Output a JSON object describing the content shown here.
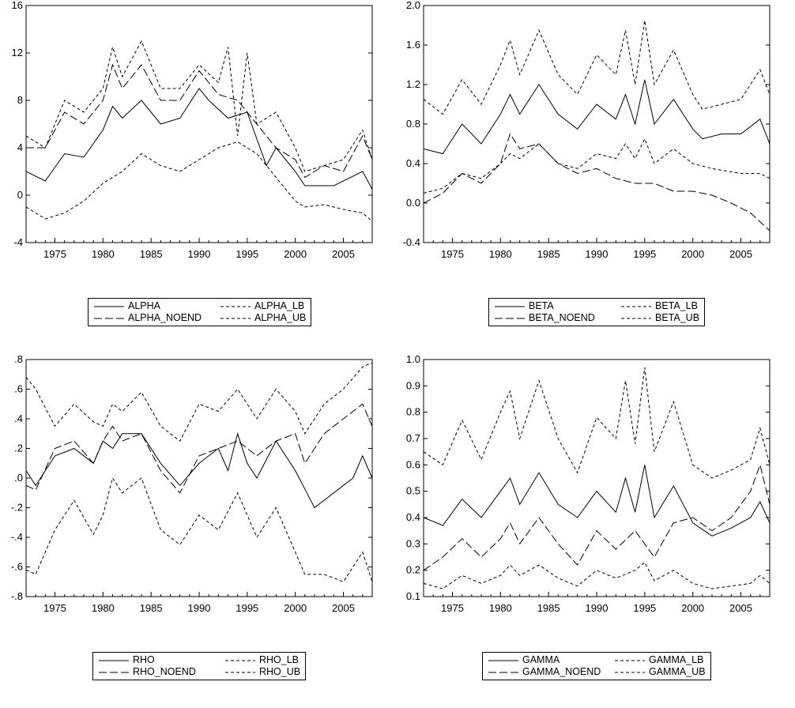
{
  "chart_data": [
    {
      "type": "line",
      "x_ticks": [
        "1975",
        "1980",
        "1985",
        "1990",
        "1995",
        "2000",
        "2005"
      ],
      "y_ticks": [
        "-4",
        "0",
        "4",
        "8",
        "12",
        "16"
      ],
      "xlim": [
        1972,
        2008
      ],
      "ylim": [
        -4,
        16
      ],
      "legend": {
        "position": "bottom-center",
        "entries": [
          "ALPHA",
          "ALPHA_LB",
          "ALPHA_NOEND",
          "ALPHA_UB"
        ]
      },
      "series": [
        {
          "name": "ALPHA",
          "style": "solid",
          "x": [
            1972,
            1974,
            1976,
            1978,
            1980,
            1981,
            1982,
            1984,
            1986,
            1988,
            1990,
            1991,
            1993,
            1995,
            1997,
            1998,
            2000,
            2001,
            2004,
            2007,
            2008
          ],
          "y": [
            2,
            1.2,
            3.5,
            3.2,
            5.5,
            7.5,
            6.5,
            8,
            6,
            6.5,
            9,
            8,
            6.5,
            7,
            2.5,
            4,
            2,
            0.8,
            0.8,
            2,
            0.5
          ]
        },
        {
          "name": "ALPHA_LB",
          "style": "short-dash",
          "x": [
            1972,
            1974,
            1976,
            1978,
            1980,
            1982,
            1984,
            1986,
            1988,
            1990,
            1992,
            1994,
            1996,
            1998,
            2000,
            2001,
            2003,
            2005,
            2007,
            2008
          ],
          "y": [
            -1,
            -2,
            -1.5,
            -0.5,
            1,
            2,
            3.5,
            2.5,
            2,
            3,
            4,
            4.5,
            3.5,
            1.5,
            -0.5,
            -1,
            -0.8,
            -1.2,
            -1.5,
            -2.2
          ]
        },
        {
          "name": "ALPHA_NOEND",
          "style": "long-dash",
          "x": [
            1972,
            1974,
            1976,
            1978,
            1980,
            1981,
            1982,
            1984,
            1986,
            1988,
            1990,
            1992,
            1994,
            1996,
            1998,
            2000,
            2001,
            2003,
            2005,
            2007,
            2008
          ],
          "y": [
            4,
            4,
            7,
            6,
            8,
            11,
            9,
            11,
            8,
            8,
            10.5,
            8.5,
            8,
            6,
            4,
            3,
            1.5,
            2.5,
            2,
            5,
            3
          ]
        },
        {
          "name": "ALPHA_UB",
          "style": "short-dash",
          "x": [
            1972,
            1974,
            1976,
            1978,
            1980,
            1981,
            1982,
            1984,
            1986,
            1988,
            1990,
            1992,
            1993,
            1994,
            1995,
            1996,
            1998,
            2000,
            2001,
            2003,
            2005,
            2007,
            2008
          ],
          "y": [
            5,
            4,
            8,
            7,
            9,
            12.5,
            10,
            13,
            9,
            9,
            11,
            9.5,
            12.5,
            5,
            12,
            6,
            7,
            4,
            2,
            2.5,
            3,
            5.5,
            3
          ]
        }
      ]
    },
    {
      "type": "line",
      "x_ticks": [
        "1975",
        "1980",
        "1985",
        "1990",
        "1995",
        "2000",
        "2005"
      ],
      "y_ticks": [
        "-0.4",
        "0.0",
        "0.4",
        "0.8",
        "1.2",
        "1.6",
        "2.0"
      ],
      "xlim": [
        1972,
        2008
      ],
      "ylim": [
        -0.4,
        2.0
      ],
      "legend": {
        "position": "bottom-center",
        "entries": [
          "BETA",
          "BETA_LB",
          "BETA_NOEND",
          "BETA_UB"
        ]
      },
      "series": [
        {
          "name": "BETA",
          "style": "solid",
          "x": [
            1972,
            1974,
            1976,
            1978,
            1980,
            1981,
            1982,
            1984,
            1986,
            1988,
            1990,
            1992,
            1993,
            1994,
            1995,
            1996,
            1998,
            2000,
            2001,
            2003,
            2005,
            2007,
            2008
          ],
          "y": [
            0.55,
            0.5,
            0.8,
            0.6,
            0.9,
            1.1,
            0.9,
            1.2,
            0.9,
            0.75,
            1.0,
            0.85,
            1.1,
            0.8,
            1.25,
            0.8,
            1.05,
            0.75,
            0.65,
            0.7,
            0.7,
            0.85,
            0.6
          ]
        },
        {
          "name": "BETA_LB",
          "style": "short-dash",
          "x": [
            1972,
            1974,
            1976,
            1978,
            1980,
            1981,
            1982,
            1984,
            1986,
            1988,
            1990,
            1992,
            1993,
            1994,
            1995,
            1996,
            1998,
            2000,
            2002,
            2005,
            2007,
            2008
          ],
          "y": [
            0.1,
            0.15,
            0.3,
            0.25,
            0.4,
            0.5,
            0.45,
            0.6,
            0.4,
            0.35,
            0.5,
            0.45,
            0.6,
            0.45,
            0.65,
            0.4,
            0.55,
            0.4,
            0.35,
            0.3,
            0.3,
            0.25
          ]
        },
        {
          "name": "BETA_NOEND",
          "style": "long-dash",
          "x": [
            1972,
            1974,
            1976,
            1978,
            1980,
            1981,
            1982,
            1984,
            1986,
            1988,
            1990,
            1992,
            1994,
            1996,
            1998,
            2000,
            2002,
            2004,
            2006,
            2008
          ],
          "y": [
            0.0,
            0.1,
            0.3,
            0.2,
            0.4,
            0.7,
            0.55,
            0.6,
            0.4,
            0.3,
            0.35,
            0.25,
            0.2,
            0.2,
            0.12,
            0.12,
            0.08,
            0.0,
            -0.1,
            -0.28
          ]
        },
        {
          "name": "BETA_UB",
          "style": "short-dash",
          "x": [
            1972,
            1974,
            1976,
            1978,
            1980,
            1981,
            1982,
            1984,
            1986,
            1988,
            1990,
            1992,
            1993,
            1994,
            1995,
            1996,
            1998,
            2000,
            2001,
            2003,
            2005,
            2007,
            2008
          ],
          "y": [
            1.05,
            0.9,
            1.25,
            1.0,
            1.4,
            1.65,
            1.3,
            1.75,
            1.3,
            1.1,
            1.5,
            1.3,
            1.75,
            1.2,
            1.85,
            1.2,
            1.55,
            1.1,
            0.95,
            1.0,
            1.05,
            1.35,
            1.1
          ]
        }
      ]
    },
    {
      "type": "line",
      "x_ticks": [
        "1975",
        "1980",
        "1985",
        "1990",
        "1995",
        "2000",
        "2005"
      ],
      "y_ticks": [
        "-.8",
        "-.6",
        "-.4",
        "-.2",
        ".0",
        ".2",
        ".4",
        ".6",
        ".8"
      ],
      "xlim": [
        1972,
        2008
      ],
      "ylim": [
        -0.8,
        0.8
      ],
      "legend": {
        "position": "bottom-center",
        "entries": [
          "RHO",
          "RHO_LB",
          "RHO_NOEND",
          "RHO_UB"
        ]
      },
      "series": [
        {
          "name": "RHO",
          "style": "solid",
          "x": [
            1972,
            1973,
            1975,
            1977,
            1979,
            1980,
            1981,
            1982,
            1984,
            1986,
            1988,
            1990,
            1992,
            1993,
            1994,
            1995,
            1996,
            1998,
            2000,
            2002,
            2004,
            2006,
            2007,
            2008
          ],
          "y": [
            0.05,
            -0.05,
            0.15,
            0.2,
            0.1,
            0.25,
            0.2,
            0.3,
            0.3,
            0.1,
            -0.05,
            0.1,
            0.2,
            0.05,
            0.3,
            0.1,
            0.0,
            0.25,
            0.05,
            -0.2,
            -0.1,
            0.0,
            0.15,
            0.0
          ]
        },
        {
          "name": "RHO_LB",
          "style": "short-dash",
          "x": [
            1972,
            1973,
            1975,
            1977,
            1979,
            1980,
            1981,
            1982,
            1984,
            1986,
            1988,
            1990,
            1992,
            1994,
            1996,
            1998,
            2000,
            2001,
            2003,
            2005,
            2007,
            2008
          ],
          "y": [
            -0.62,
            -0.65,
            -0.35,
            -0.15,
            -0.38,
            -0.25,
            0.0,
            -0.1,
            0.0,
            -0.35,
            -0.45,
            -0.25,
            -0.35,
            -0.1,
            -0.4,
            -0.2,
            -0.5,
            -0.65,
            -0.65,
            -0.7,
            -0.5,
            -0.7
          ]
        },
        {
          "name": "RHO_NOEND",
          "style": "long-dash",
          "x": [
            1972,
            1973,
            1975,
            1977,
            1979,
            1980,
            1981,
            1982,
            1984,
            1986,
            1988,
            1990,
            1992,
            1994,
            1996,
            1998,
            2000,
            2001,
            2003,
            2005,
            2007,
            2008
          ],
          "y": [
            -0.05,
            -0.08,
            0.2,
            0.25,
            0.1,
            0.25,
            0.35,
            0.25,
            0.3,
            0.05,
            -0.1,
            0.15,
            0.2,
            0.25,
            0.15,
            0.25,
            0.3,
            0.1,
            0.3,
            0.4,
            0.5,
            0.35
          ]
        },
        {
          "name": "RHO_UB",
          "style": "short-dash",
          "x": [
            1972,
            1973,
            1975,
            1977,
            1979,
            1980,
            1981,
            1982,
            1984,
            1986,
            1988,
            1990,
            1992,
            1994,
            1996,
            1998,
            2000,
            2001,
            2003,
            2005,
            2007,
            2008
          ],
          "y": [
            0.68,
            0.6,
            0.35,
            0.5,
            0.38,
            0.35,
            0.5,
            0.45,
            0.58,
            0.35,
            0.25,
            0.5,
            0.45,
            0.6,
            0.4,
            0.6,
            0.45,
            0.3,
            0.5,
            0.6,
            0.75,
            0.78
          ]
        }
      ]
    },
    {
      "type": "line",
      "x_ticks": [
        "1975",
        "1980",
        "1985",
        "1990",
        "1995",
        "2000",
        "2005"
      ],
      "y_ticks": [
        "0.1",
        "0.2",
        "0.3",
        "0.4",
        "0.5",
        "0.6",
        "0.7",
        "0.8",
        "0.9",
        "1.0"
      ],
      "xlim": [
        1972,
        2008
      ],
      "ylim": [
        0.1,
        1.0
      ],
      "legend": {
        "position": "bottom-center",
        "entries": [
          "GAMMA",
          "GAMMA_LB",
          "GAMMA_NOEND",
          "GAMMA_UB"
        ]
      },
      "series": [
        {
          "name": "GAMMA",
          "style": "solid",
          "x": [
            1972,
            1974,
            1976,
            1978,
            1980,
            1981,
            1982,
            1984,
            1986,
            1988,
            1990,
            1992,
            1993,
            1994,
            1995,
            1996,
            1998,
            2000,
            2002,
            2004,
            2006,
            2007,
            2008
          ],
          "y": [
            0.4,
            0.37,
            0.47,
            0.4,
            0.5,
            0.55,
            0.45,
            0.57,
            0.45,
            0.4,
            0.5,
            0.42,
            0.55,
            0.42,
            0.6,
            0.4,
            0.52,
            0.38,
            0.33,
            0.36,
            0.4,
            0.46,
            0.38
          ]
        },
        {
          "name": "GAMMA_LB",
          "style": "short-dash",
          "x": [
            1972,
            1974,
            1976,
            1978,
            1980,
            1981,
            1982,
            1984,
            1986,
            1988,
            1990,
            1992,
            1994,
            1995,
            1996,
            1998,
            2000,
            2002,
            2004,
            2006,
            2007,
            2008
          ],
          "y": [
            0.15,
            0.13,
            0.18,
            0.15,
            0.18,
            0.22,
            0.18,
            0.22,
            0.17,
            0.14,
            0.2,
            0.17,
            0.2,
            0.23,
            0.16,
            0.2,
            0.15,
            0.13,
            0.14,
            0.15,
            0.18,
            0.15
          ]
        },
        {
          "name": "GAMMA_NOEND",
          "style": "long-dash",
          "x": [
            1972,
            1974,
            1976,
            1978,
            1980,
            1981,
            1982,
            1984,
            1986,
            1988,
            1990,
            1992,
            1994,
            1996,
            1998,
            2000,
            2002,
            2004,
            2006,
            2007,
            2008
          ],
          "y": [
            0.2,
            0.25,
            0.32,
            0.25,
            0.32,
            0.38,
            0.3,
            0.4,
            0.3,
            0.22,
            0.35,
            0.28,
            0.35,
            0.25,
            0.38,
            0.4,
            0.35,
            0.4,
            0.5,
            0.6,
            0.45
          ]
        },
        {
          "name": "GAMMA_UB",
          "style": "short-dash",
          "x": [
            1972,
            1974,
            1976,
            1978,
            1980,
            1981,
            1982,
            1984,
            1986,
            1988,
            1990,
            1992,
            1993,
            1994,
            1995,
            1996,
            1998,
            2000,
            2002,
            2004,
            2006,
            2007,
            2008
          ],
          "y": [
            0.65,
            0.6,
            0.77,
            0.62,
            0.8,
            0.88,
            0.7,
            0.92,
            0.7,
            0.57,
            0.78,
            0.7,
            0.92,
            0.68,
            0.97,
            0.65,
            0.84,
            0.6,
            0.55,
            0.58,
            0.62,
            0.74,
            0.6
          ]
        }
      ]
    }
  ]
}
